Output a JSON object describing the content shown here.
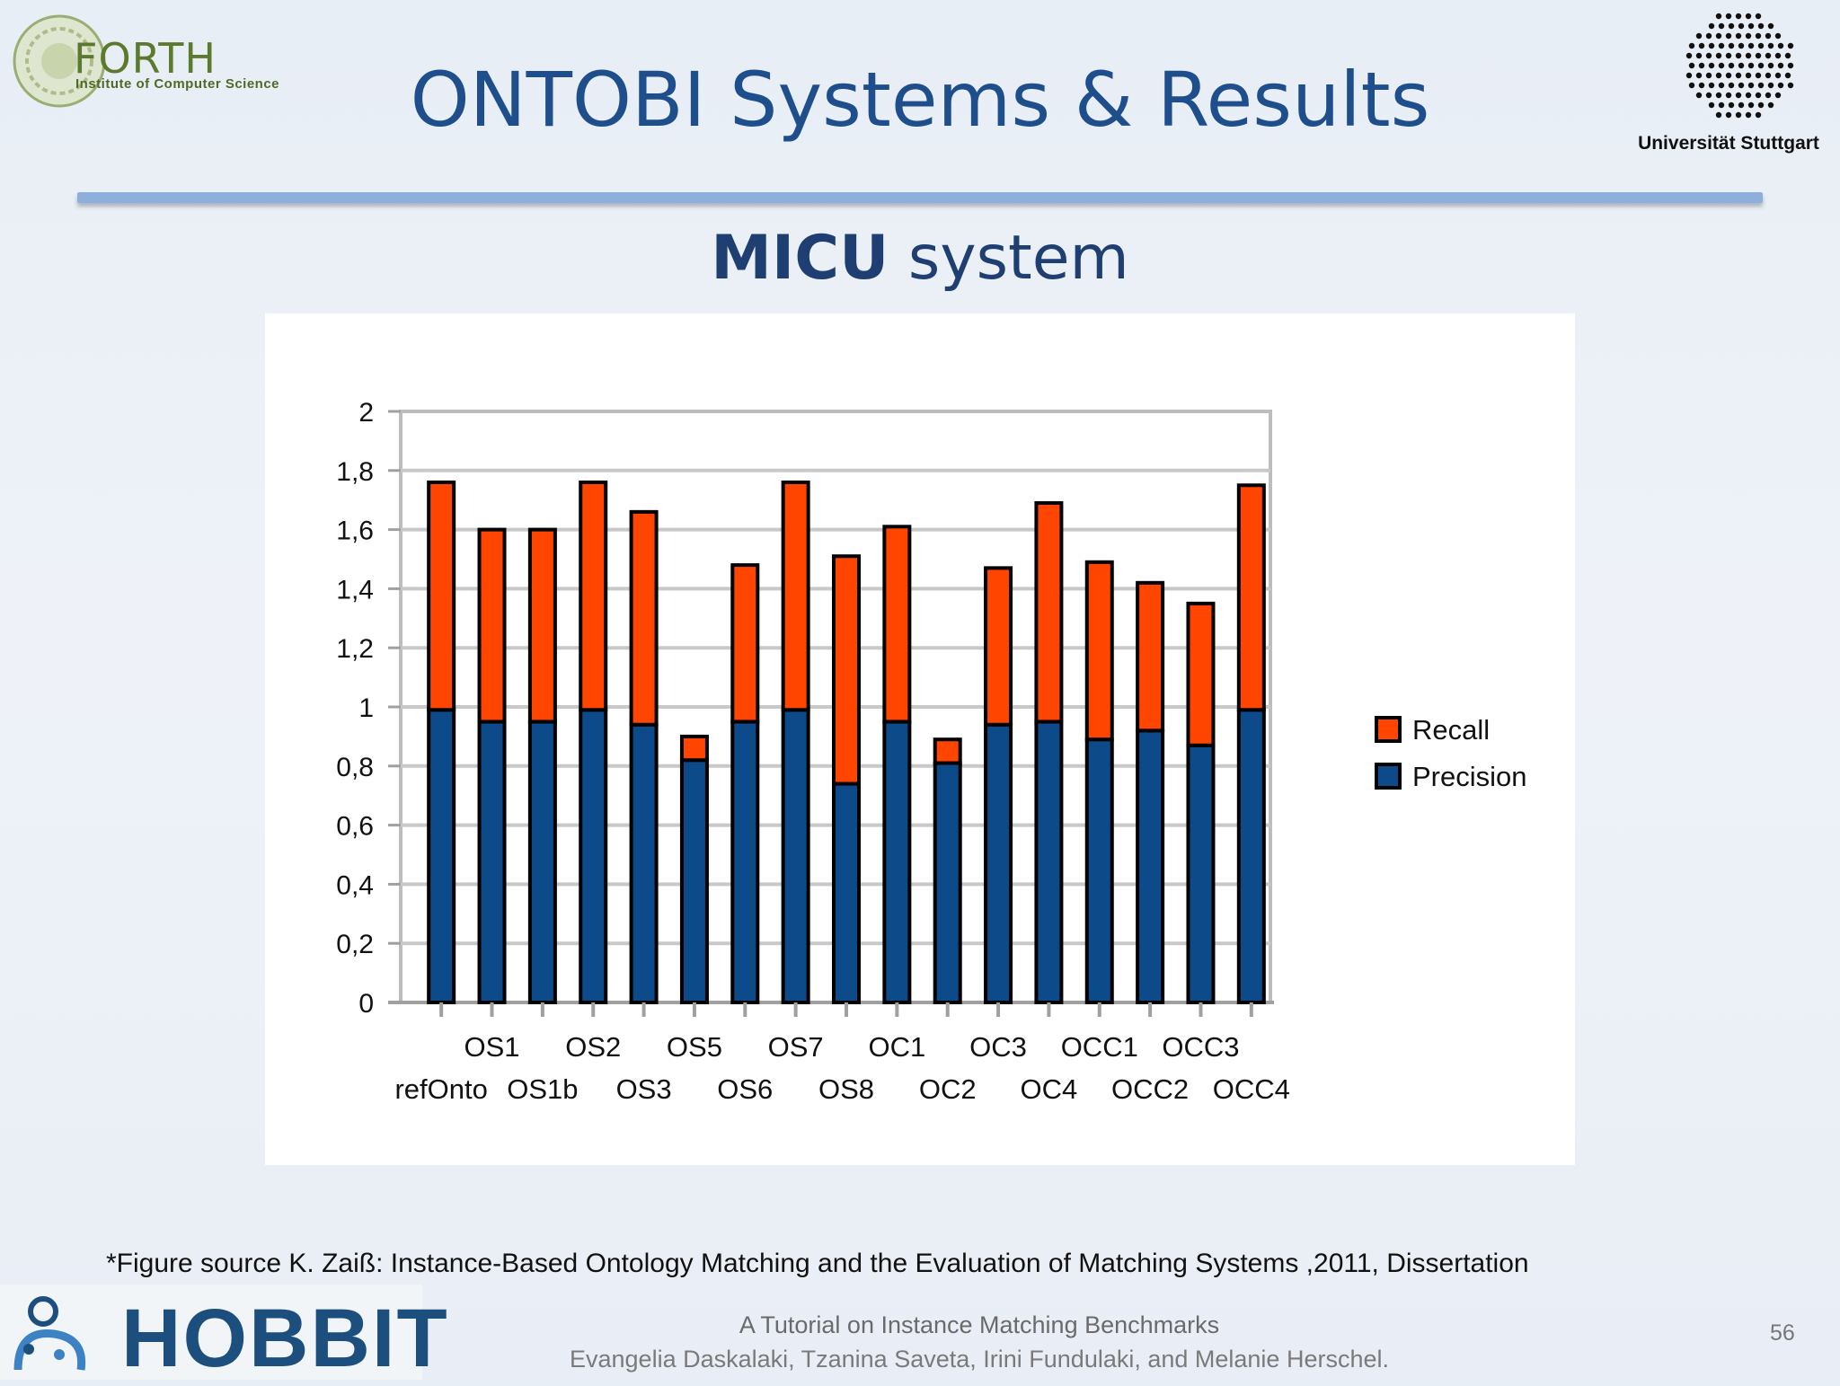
{
  "header": {
    "org_name": "FORTH",
    "org_subtitle": "Institute of Computer Science",
    "title": "ONTOBI Systems & Results",
    "university": "Universität Stuttgart"
  },
  "subtitle": {
    "bold": "MICU",
    "rest": " system"
  },
  "chart_data": {
    "type": "bar",
    "stacked": true,
    "title": "",
    "xlabel": "",
    "ylabel": "",
    "ylim": [
      0,
      2
    ],
    "yticks": [
      "0",
      "0,2",
      "0,4",
      "0,6",
      "0,8",
      "1",
      "1,2",
      "1,4",
      "1,6",
      "1,8",
      "2"
    ],
    "categories": [
      "refOnto",
      "OS1",
      "OS1b",
      "OS2",
      "OS3",
      "OS5",
      "OS6",
      "OS7",
      "OS8",
      "OC1",
      "OC2",
      "OC3",
      "OC4",
      "OCC1",
      "OCC2",
      "OCC3",
      "OCC4"
    ],
    "series": [
      {
        "name": "Precision",
        "color": "#0d4a8a",
        "values": [
          0.99,
          0.95,
          0.95,
          0.99,
          0.94,
          0.82,
          0.95,
          0.99,
          0.74,
          0.95,
          0.81,
          0.94,
          0.95,
          0.89,
          0.92,
          0.87,
          0.99
        ]
      },
      {
        "name": "Recall",
        "color": "#ff4500",
        "values": [
          0.77,
          0.65,
          0.65,
          0.77,
          0.72,
          0.08,
          0.53,
          0.77,
          0.77,
          0.66,
          0.08,
          0.53,
          0.74,
          0.6,
          0.5,
          0.48,
          0.76
        ]
      }
    ],
    "legend": [
      "Recall",
      "Precision"
    ],
    "legend_position": "right",
    "grid": true
  },
  "footer": {
    "source_note": "*Figure source K. Zaiß: Instance-Based Ontology Matching and the Evaluation of Matching Systems ,2011, Dissertation",
    "project": "HOBBIT",
    "tutorial": "A Tutorial on Instance Matching Benchmarks",
    "authors": "Evangelia Daskalaki, Tzanina Saveta, Irini Fundulaki, and Melanie Herschel.",
    "page": "56"
  }
}
